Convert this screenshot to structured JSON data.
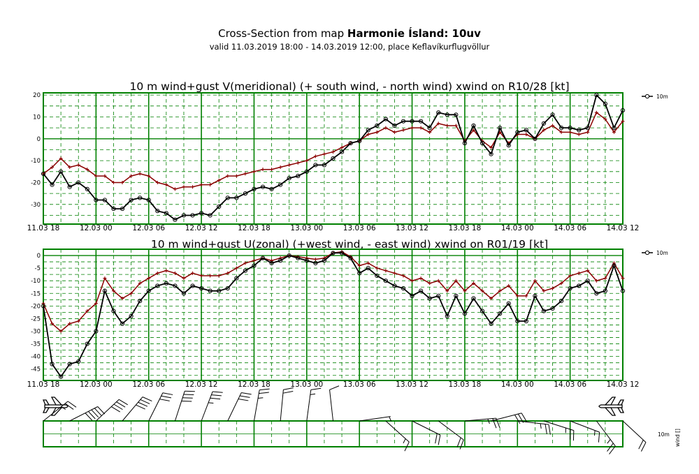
{
  "header": {
    "title_prefix": "Cross-Section from map ",
    "title_bold": "Harmonie Ísland: 10uv",
    "subtitle": "valid 11.03.2019 18:00 - 14.03.2019 12:00, place Keflavíkurflugvöllur"
  },
  "colors": {
    "frame": "#008000",
    "wind": "#000000",
    "gust": "#8b0000"
  },
  "x_tick_labels": [
    "11.03 18",
    "12.03 00",
    "12.03 06",
    "12.03 12",
    "12.03 18",
    "13.03 00",
    "13.03 06",
    "13.03 12",
    "13.03 18",
    "14.03 00",
    "14.03 06",
    "14.03 12"
  ],
  "chart_data": [
    {
      "type": "line",
      "title": "10 m wind+gust V(meridional) (+ south wind, - north wind) xwind on R10/28 [kt]",
      "x": {
        "start": "11.03.2019 18:00",
        "end": "14.03.2019 12:00",
        "step_hours": 1
      },
      "ylim": [
        -39,
        21
      ],
      "yticks": [
        20,
        10,
        0,
        -10,
        -20,
        -30
      ],
      "grid": true,
      "legend": {
        "label": "10m",
        "placement": "right"
      },
      "series": [
        {
          "name": "10m",
          "marker": "circle",
          "color": "#000000",
          "values": [
            -16,
            -21,
            -15,
            -22,
            -20,
            -23,
            -28,
            -28,
            -32,
            -32,
            -28,
            -27,
            -28,
            -33,
            -34,
            -37,
            -35,
            -35,
            -34,
            -35,
            -31,
            -27,
            -27,
            -25,
            -23,
            -22,
            -23,
            -21,
            -18,
            -17,
            -15,
            -12,
            -12,
            -9,
            -6,
            -2,
            -1,
            4,
            6,
            9,
            6,
            8,
            8,
            8,
            5,
            12,
            11,
            11,
            -2,
            6,
            -2,
            -7,
            5,
            -3,
            3,
            4,
            0,
            7,
            11,
            5,
            5,
            4,
            5,
            20,
            16,
            5,
            13
          ]
        },
        {
          "name": "",
          "marker": "plus",
          "color": "#8b0000",
          "values": [
            -16,
            -13,
            -9,
            -13,
            -12,
            -14,
            -17,
            -17,
            -20,
            -20,
            -17,
            -16,
            -17,
            -20,
            -21,
            -23,
            -22,
            -22,
            -21,
            -21,
            -19,
            -17,
            -17,
            -16,
            -15,
            -14,
            -14,
            -13,
            -12,
            -11,
            -10,
            -8,
            -7,
            -6,
            -4,
            -2,
            -1,
            2,
            3,
            5,
            3,
            4,
            5,
            5,
            3,
            7,
            6,
            6,
            -1,
            4,
            -1,
            -4,
            3,
            -2,
            2,
            2,
            0,
            4,
            6,
            3,
            3,
            2,
            3,
            12,
            9,
            3,
            8
          ]
        }
      ]
    },
    {
      "type": "line",
      "title": "10 m wind+gust U(zonal) (+west wind, - east wind) xwind on R01/19 [kt]",
      "x": {
        "start": "11.03.2019 18:00",
        "end": "14.03.2019 12:00",
        "step_hours": 1
      },
      "ylim": [
        -49.5,
        2.5
      ],
      "yticks": [
        0,
        -5,
        -10,
        -15,
        -20,
        -25,
        -30,
        -35,
        -40,
        -45
      ],
      "grid": true,
      "legend": {
        "label": "10m",
        "placement": "right"
      },
      "series": [
        {
          "name": "10m",
          "marker": "circle",
          "color": "#000000",
          "values": [
            -20,
            -43,
            -48,
            -43,
            -42,
            -35,
            -30,
            -14,
            -22,
            -27,
            -24,
            -18,
            -14,
            -12,
            -11,
            -12,
            -15,
            -12,
            -13,
            -14,
            -14,
            -13,
            -9,
            -6,
            -4,
            -1,
            -3,
            -2,
            0,
            -1,
            -2,
            -3,
            -2,
            1,
            1,
            -1,
            -7,
            -5,
            -8,
            -10,
            -12,
            -13,
            -16,
            -14,
            -17,
            -16,
            -24,
            -16,
            -23,
            -17,
            -22,
            -27,
            -23,
            -19,
            -26,
            -26,
            -16,
            -22,
            -21,
            -18,
            -13,
            -12,
            -10,
            -15,
            -14,
            -4,
            -14
          ]
        },
        {
          "name": "",
          "marker": "plus",
          "color": "#8b0000",
          "values": [
            -19,
            -27,
            -30,
            -27,
            -26,
            -22,
            -19,
            -9,
            -14,
            -17,
            -15,
            -11,
            -9,
            -7,
            -6,
            -7,
            -9,
            -7,
            -8,
            -8,
            -8,
            -7,
            -5,
            -3,
            -2,
            -1,
            -2,
            -1,
            0,
            -0.5,
            -1,
            -1.5,
            -1,
            1,
            1.5,
            -0.5,
            -4,
            -3,
            -5,
            -6,
            -7,
            -8,
            -10,
            -9,
            -11,
            -10,
            -14,
            -10,
            -14,
            -11,
            -14,
            -17,
            -14,
            -12,
            -16,
            -16,
            -10,
            -14,
            -13,
            -11,
            -8,
            -7,
            -6,
            -10,
            -9,
            -3,
            -9
          ]
        }
      ]
    }
  ],
  "barbs": {
    "label_10m": "10m",
    "label_wind": "wind []"
  }
}
